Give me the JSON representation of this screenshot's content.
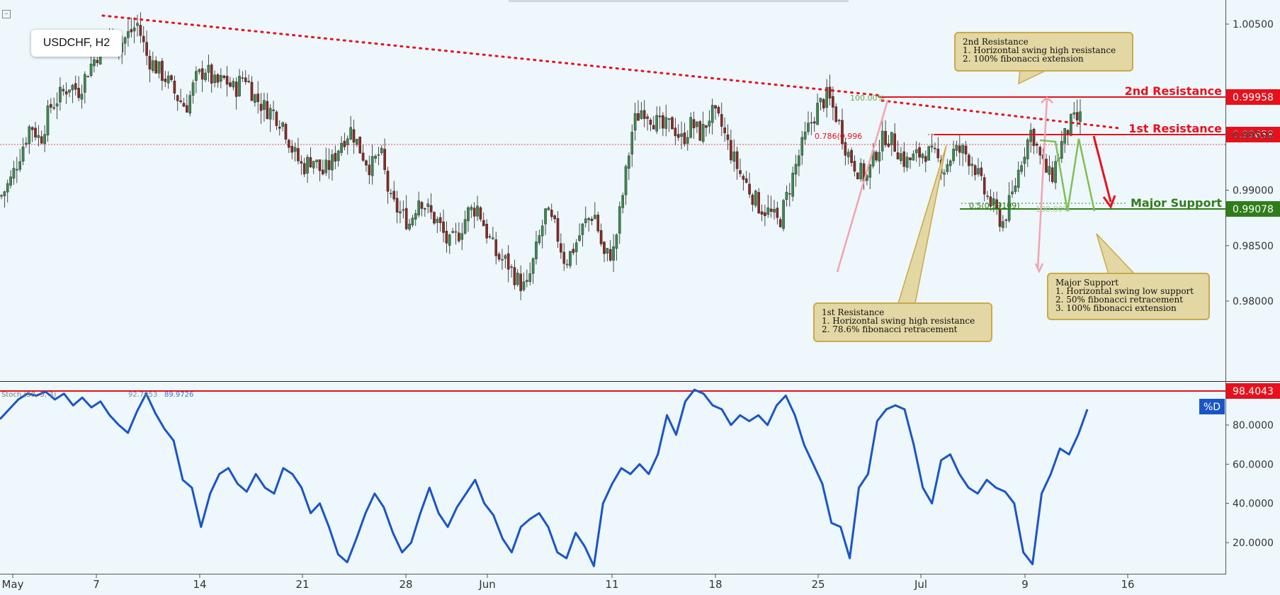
{
  "symbol": "USDCHF, H2",
  "colors": {
    "background": "#eef7fb",
    "up_candle": "#3c8a4f",
    "down_candle": "#8a2a22",
    "resistance": "#e8101c",
    "support": "#2f7d1a",
    "stoch_line": "#1a55c8",
    "note_bg": "#e3d7a4",
    "note_border": "#c9a94a"
  },
  "chart_data": [
    {
      "type": "candlestick",
      "name": "price",
      "yticks": [
        "1.00500",
        "0.99500",
        "0.99000",
        "0.98500",
        "0.98000"
      ],
      "ylim": [
        0.977,
        1.0065
      ],
      "x_labels": [
        "May",
        "7",
        "14",
        "21",
        "28",
        "Jun",
        "11",
        "18",
        "25",
        "Jul",
        "9",
        "16"
      ],
      "close_path": [
        0.9895,
        0.991,
        0.9935,
        0.996,
        0.9945,
        0.9975,
        0.9985,
        0.9995,
        0.999,
        1.001,
        1.0025,
        1.0045,
        1.003,
        1.004,
        1.005,
        1.002,
        1.001,
        1.0,
        0.9985,
        0.9975,
        1.0,
        1.001,
        0.9995,
        1.0,
        0.999,
        1.0005,
        0.9985,
        0.9975,
        0.997,
        0.996,
        0.9935,
        0.992,
        0.993,
        0.9915,
        0.9925,
        0.9945,
        0.9955,
        0.9935,
        0.992,
        0.9935,
        0.989,
        0.988,
        0.987,
        0.9895,
        0.988,
        0.987,
        0.985,
        0.986,
        0.988,
        0.9885,
        0.986,
        0.984,
        0.9835,
        0.982,
        0.981,
        0.9845,
        0.988,
        0.9865,
        0.9835,
        0.985,
        0.987,
        0.988,
        0.984,
        0.9845,
        0.99,
        0.996,
        0.9975,
        0.9965,
        0.9955,
        0.996,
        0.9945,
        0.996,
        0.995,
        0.997,
        0.996,
        0.9935,
        0.9915,
        0.99,
        0.9885,
        0.988,
        0.987,
        0.99,
        0.993,
        0.9955,
        0.9975,
        0.9985,
        0.9965,
        0.9935,
        0.992,
        0.991,
        0.9935,
        0.995,
        0.994,
        0.9925,
        0.993,
        0.9935,
        0.993,
        0.992,
        0.9935,
        0.9935,
        0.9925,
        0.99,
        0.9885,
        0.987,
        0.9895,
        0.993,
        0.9955,
        0.9925,
        0.991,
        0.994,
        0.996,
        0.9965
      ],
      "levels": [
        {
          "label": "2nd Resistance",
          "value": "0.99958",
          "color": "#e8101c"
        },
        {
          "label": "1st Resistance",
          "value": "0.99658",
          "color": "#e8101c"
        },
        {
          "label": "Major Support",
          "value": "0.99078",
          "color": "#2f7d1a"
        }
      ],
      "fib_labels": [
        "100.00%",
        "0.786(0.996",
        "0.5(0.99109)",
        "100.00%"
      ]
    },
    {
      "type": "line",
      "name": "stochastic",
      "indicator_label": "Stoch (38, 5, 3)",
      "indicator_values": [
        "92.7953",
        "89.9726"
      ],
      "yticks": [
        "80.0000",
        "60.0000",
        "40.0000",
        "20.0000"
      ],
      "ylim": [
        5,
        102
      ],
      "level": "98.4043",
      "legend": "%D",
      "values": [
        83,
        88,
        93,
        96,
        95,
        97,
        93,
        96,
        90,
        94,
        89,
        92,
        85,
        80,
        76,
        87,
        96,
        86,
        78,
        72,
        52,
        48,
        28,
        45,
        55,
        58,
        50,
        46,
        55,
        48,
        45,
        58,
        55,
        48,
        35,
        40,
        28,
        14,
        10,
        22,
        35,
        45,
        38,
        25,
        15,
        20,
        35,
        48,
        35,
        28,
        38,
        45,
        52,
        40,
        34,
        22,
        15,
        28,
        32,
        35,
        28,
        15,
        12,
        25,
        18,
        8,
        40,
        50,
        58,
        55,
        60,
        55,
        65,
        85,
        75,
        92,
        98,
        96,
        90,
        88,
        80,
        85,
        82,
        85,
        80,
        90,
        95,
        85,
        70,
        60,
        50,
        30,
        28,
        12,
        48,
        55,
        82,
        88,
        90,
        88,
        70,
        48,
        40,
        62,
        65,
        55,
        48,
        45,
        52,
        48,
        46,
        40,
        15,
        9,
        45,
        55,
        68,
        65,
        75,
        88
      ]
    }
  ],
  "notes": {
    "second_resistance": {
      "title": "2nd Resistance",
      "items": [
        "1. Horizontal swing high resistance",
        "2. 100% fibonacci extension"
      ]
    },
    "first_resistance": {
      "title": "1st Resistance",
      "items": [
        "1. Horizontal swing high resistance",
        "2. 78.6% fibonacci retracement"
      ]
    },
    "major_support": {
      "title": "Major Support",
      "items": [
        "1. Horizontal swing low support",
        "2. 50% fibonacci retracement",
        "3. 100% fibonacci extension"
      ]
    }
  }
}
